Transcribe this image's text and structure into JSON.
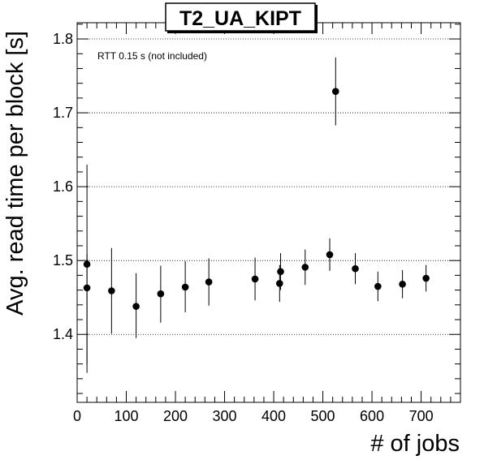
{
  "chart_data": {
    "type": "scatter",
    "title": "T2_UA_KIPT",
    "annotation": "RTT 0.15 s (not included)",
    "xlabel": "# of jobs",
    "ylabel": "Avg. read time per block [s]",
    "xlim": [
      0,
      780
    ],
    "ylim": [
      1.308,
      1.822
    ],
    "x_ticks": [
      0,
      100,
      200,
      300,
      400,
      500,
      600,
      700
    ],
    "y_ticks": [
      1.4,
      1.5,
      1.6,
      1.7,
      1.8
    ],
    "y_tick_labels": [
      "1.4",
      "1.5",
      "1.6",
      "1.7",
      "1.8"
    ],
    "grid": "horizontal",
    "series": [
      {
        "x": [
          20,
          20,
          70,
          120,
          170,
          220,
          268,
          362,
          412,
          414,
          464,
          514,
          526,
          566,
          612,
          662,
          710
        ],
        "y": [
          1.463,
          1.495,
          1.459,
          1.438,
          1.455,
          1.464,
          1.471,
          1.475,
          1.469,
          1.485,
          1.491,
          1.508,
          1.729,
          1.489,
          1.465,
          1.468,
          1.476
        ],
        "err_low": [
          0.115,
          0.135,
          0.058,
          0.043,
          0.039,
          0.034,
          0.032,
          0.029,
          0.025,
          0.025,
          0.024,
          0.022,
          0.046,
          0.021,
          0.02,
          0.019,
          0.018
        ],
        "err_high": [
          0.046,
          0.135,
          0.058,
          0.045,
          0.038,
          0.035,
          0.032,
          0.029,
          0.025,
          0.025,
          0.024,
          0.022,
          0.046,
          0.021,
          0.02,
          0.019,
          0.018
        ]
      }
    ]
  }
}
